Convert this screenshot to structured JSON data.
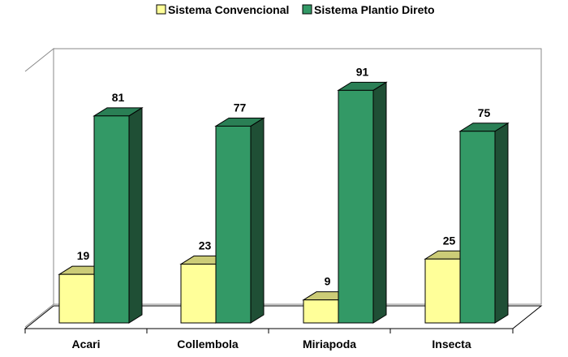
{
  "chart_data": {
    "type": "bar",
    "categories": [
      "Acari",
      "Collembola",
      "Miriapoda",
      "Insecta"
    ],
    "series": [
      {
        "name": "Sistema Convencional",
        "values": [
          19,
          23,
          9,
          25
        ],
        "color": "#ffff99",
        "top_color": "#cccc77",
        "side_color": "#999966"
      },
      {
        "name": "Sistema Plantio Direto",
        "values": [
          81,
          77,
          91,
          75
        ],
        "color": "#339966",
        "top_color": "#2a7f55",
        "side_color": "#1f4f35"
      }
    ],
    "ylim": [
      0,
      100
    ],
    "grid": false,
    "legend_position": "top",
    "data_labels": true,
    "style": "3d-clustered-bar",
    "background": "#ffffff"
  }
}
